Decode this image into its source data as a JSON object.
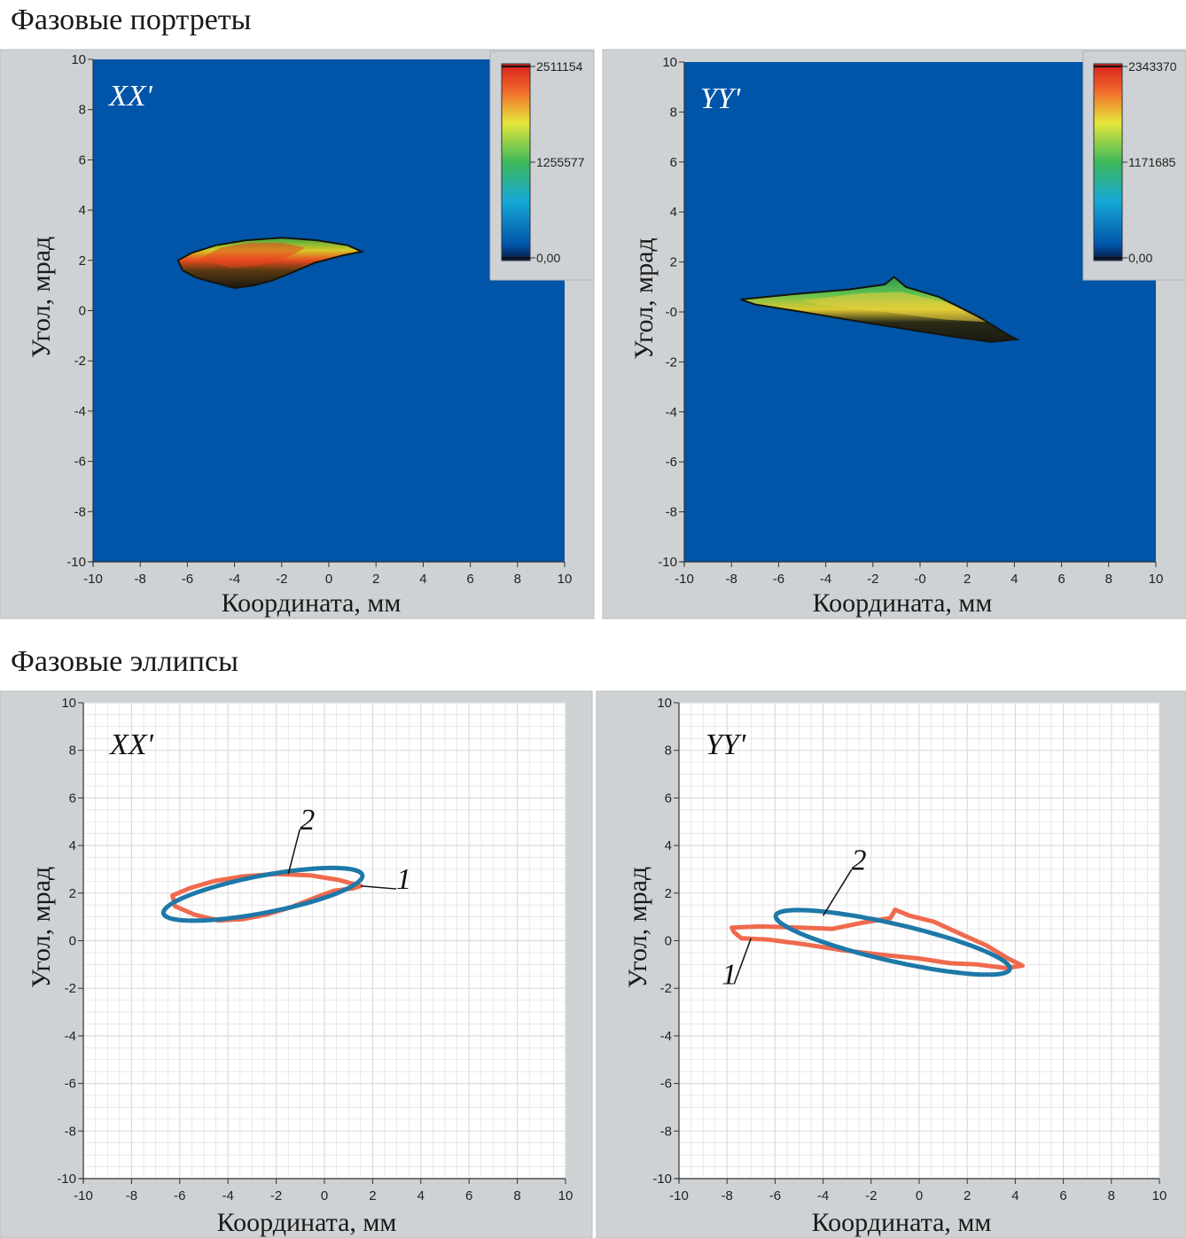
{
  "sections": {
    "portraits_title": "Фазовые портреты",
    "ellipses_title": "Фазовые эллипсы"
  },
  "colors": {
    "plot_background_blue": "#0055a8",
    "panel_gray": "#cfd2d4",
    "measured_contour": "#f06a4e",
    "fitted_ellipse": "#1e78a8",
    "grid": "#dcdcdc"
  },
  "chart_data": [
    {
      "id": "portrait-xx",
      "type": "heatmap",
      "title": "XX'",
      "xlabel": "Координата, мм",
      "ylabel": "Угол, мрад",
      "xlim": [
        -10,
        10
      ],
      "ylim": [
        -10,
        10
      ],
      "xticks": [
        "-10",
        "-8",
        "-6",
        "-4",
        "-2",
        "0",
        "2",
        "4",
        "6",
        "8",
        "10"
      ],
      "yticks": [
        "10",
        "8",
        "6",
        "4",
        "2",
        "0",
        "-2",
        "-4",
        "-6",
        "-8",
        "-10"
      ],
      "colorbar": {
        "ticks": [
          "2511154",
          "1255577",
          "0,00"
        ],
        "max": 2511154,
        "min": 0
      },
      "blob": {
        "outline": [
          [
            -6.4,
            2.0
          ],
          [
            -5.8,
            2.3
          ],
          [
            -4.8,
            2.6
          ],
          [
            -3.5,
            2.8
          ],
          [
            -2.0,
            2.9
          ],
          [
            -0.5,
            2.8
          ],
          [
            0.8,
            2.6
          ],
          [
            1.4,
            2.35
          ],
          [
            0.6,
            2.2
          ],
          [
            -0.6,
            1.9
          ],
          [
            -1.6,
            1.5
          ],
          [
            -2.4,
            1.2
          ],
          [
            -3.2,
            1.0
          ],
          [
            -4.0,
            0.9
          ],
          [
            -4.8,
            1.1
          ],
          [
            -5.6,
            1.3
          ],
          [
            -6.2,
            1.6
          ]
        ],
        "core": [
          [
            -5.4,
            2.1
          ],
          [
            -4.6,
            2.5
          ],
          [
            -3.4,
            2.7
          ],
          [
            -2.0,
            2.7
          ],
          [
            -1.0,
            2.5
          ],
          [
            -1.8,
            2.1
          ],
          [
            -3.0,
            1.8
          ],
          [
            -4.2,
            1.7
          ]
        ]
      }
    },
    {
      "id": "portrait-yy",
      "type": "heatmap",
      "title": "YY'",
      "xlabel": "Координата, мм",
      "ylabel": "Угол, мрад",
      "xlim": [
        -10,
        10
      ],
      "ylim": [
        -10,
        10
      ],
      "xticks": [
        "-10",
        "-8",
        "-6",
        "-4",
        "-2",
        "-0",
        "2",
        "4",
        "6",
        "8",
        "10"
      ],
      "yticks": [
        "10",
        "8",
        "6",
        "4",
        "2",
        "-0",
        "-2",
        "-4",
        "-6",
        "-8",
        "-10"
      ],
      "colorbar": {
        "ticks": [
          "2343370",
          "1171685",
          "0,00"
        ],
        "max": 2343370,
        "min": 0
      },
      "blob": {
        "outline": [
          [
            -7.6,
            0.5
          ],
          [
            -5.5,
            0.7
          ],
          [
            -3.0,
            0.9
          ],
          [
            -1.5,
            1.1
          ],
          [
            -1.1,
            1.4
          ],
          [
            -0.6,
            1.0
          ],
          [
            0.8,
            0.6
          ],
          [
            2.5,
            -0.2
          ],
          [
            3.7,
            -0.9
          ],
          [
            4.1,
            -1.1
          ],
          [
            3.0,
            -1.2
          ],
          [
            1.5,
            -1.0
          ],
          [
            -0.5,
            -0.7
          ],
          [
            -2.5,
            -0.4
          ],
          [
            -5.0,
            0.0
          ],
          [
            -7.0,
            0.3
          ]
        ],
        "core": [
          [
            -5.0,
            0.45
          ],
          [
            -2.5,
            0.75
          ],
          [
            -0.8,
            0.8
          ],
          [
            1.2,
            0.35
          ],
          [
            2.8,
            -0.4
          ],
          [
            1.0,
            -0.3
          ],
          [
            -1.5,
            0.0
          ],
          [
            -4.0,
            0.25
          ]
        ]
      }
    },
    {
      "id": "ellipse-xx",
      "type": "line",
      "title": "XX'",
      "xlabel": "Координата, мм",
      "ylabel": "Угол, мрад",
      "xlim": [
        -10,
        10
      ],
      "ylim": [
        -10,
        10
      ],
      "xticks": [
        "-10",
        "-8",
        "-6",
        "-4",
        "-2",
        "0",
        "2",
        "4",
        "6",
        "8",
        "10"
      ],
      "yticks": [
        "10",
        "8",
        "6",
        "4",
        "2",
        "0",
        "-2",
        "-4",
        "-6",
        "-8",
        "-10"
      ],
      "series": [
        {
          "name": "1",
          "kind": "contour",
          "points": [
            [
              -6.3,
              1.9
            ],
            [
              -5.6,
              2.2
            ],
            [
              -4.6,
              2.5
            ],
            [
              -3.4,
              2.7
            ],
            [
              -2.0,
              2.8
            ],
            [
              -0.6,
              2.75
            ],
            [
              0.6,
              2.55
            ],
            [
              1.5,
              2.3
            ],
            [
              1.2,
              2.2
            ],
            [
              0.4,
              2.1
            ],
            [
              -0.4,
              1.8
            ],
            [
              -1.4,
              1.4
            ],
            [
              -2.4,
              1.1
            ],
            [
              -3.4,
              0.9
            ],
            [
              -4.4,
              0.85
            ],
            [
              -5.4,
              1.1
            ],
            [
              -6.2,
              1.45
            ]
          ]
        },
        {
          "name": "2",
          "kind": "ellipse",
          "center": [
            -2.55,
            1.95
          ],
          "semi_axes": [
            4.2,
            0.78
          ],
          "angle_deg": 11
        }
      ],
      "labels": [
        {
          "text": "2",
          "at": [
            -0.8,
            4.9
          ],
          "to": [
            -1.5,
            2.8
          ]
        },
        {
          "text": "1",
          "at": [
            3.2,
            2.4
          ],
          "to": [
            1.5,
            2.3
          ]
        }
      ]
    },
    {
      "id": "ellipse-yy",
      "type": "line",
      "title": "YY'",
      "xlabel": "Координата, мм",
      "ylabel": "Угол, мрад",
      "xlim": [
        -10,
        10
      ],
      "ylim": [
        -10,
        10
      ],
      "xticks": [
        "-10",
        "-8",
        "-6",
        "-4",
        "-2",
        "0",
        "2",
        "4",
        "6",
        "8",
        "10"
      ],
      "yticks": [
        "10",
        "8",
        "6",
        "4",
        "2",
        "0",
        "-2",
        "-4",
        "-6",
        "-8",
        "-10"
      ],
      "series": [
        {
          "name": "1",
          "kind": "contour",
          "points": [
            [
              -7.8,
              0.55
            ],
            [
              -6.6,
              0.6
            ],
            [
              -5.0,
              0.55
            ],
            [
              -3.6,
              0.5
            ],
            [
              -2.4,
              0.75
            ],
            [
              -1.2,
              0.95
            ],
            [
              -1.0,
              1.3
            ],
            [
              -0.4,
              1.05
            ],
            [
              0.6,
              0.8
            ],
            [
              1.8,
              0.25
            ],
            [
              2.8,
              -0.2
            ],
            [
              3.7,
              -0.75
            ],
            [
              4.3,
              -1.05
            ],
            [
              3.6,
              -1.15
            ],
            [
              2.4,
              -1.0
            ],
            [
              1.3,
              -0.95
            ],
            [
              0.0,
              -0.75
            ],
            [
              -1.5,
              -0.6
            ],
            [
              -3.2,
              -0.4
            ],
            [
              -4.8,
              -0.15
            ],
            [
              -6.3,
              0.05
            ],
            [
              -7.4,
              0.1
            ],
            [
              -7.7,
              0.35
            ]
          ]
        },
        {
          "name": "2",
          "kind": "ellipse",
          "center": [
            -1.1,
            -0.07
          ],
          "semi_axes": [
            5.0,
            0.78
          ],
          "angle_deg": -13
        }
      ],
      "labels": [
        {
          "text": "2",
          "at": [
            -2.6,
            3.2
          ],
          "to": [
            -4.0,
            1.05
          ]
        },
        {
          "text": "1",
          "at": [
            -8.0,
            -1.6
          ],
          "to": [
            -7.0,
            0.1
          ]
        }
      ]
    }
  ]
}
